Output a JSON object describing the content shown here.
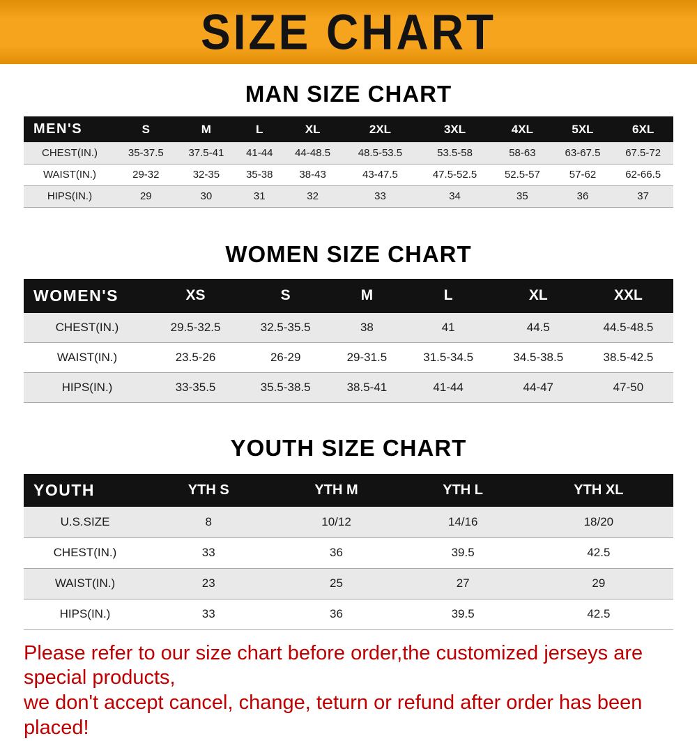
{
  "banner": {
    "title": "SIZE CHART"
  },
  "chart_data": [
    {
      "type": "table",
      "title": "MAN SIZE CHART",
      "columns": [
        "MEN'S",
        "S",
        "M",
        "L",
        "XL",
        "2XL",
        "3XL",
        "4XL",
        "5XL",
        "6XL"
      ],
      "rows": [
        [
          "CHEST(IN.)",
          "35-37.5",
          "37.5-41",
          "41-44",
          "44-48.5",
          "48.5-53.5",
          "53.5-58",
          "58-63",
          "63-67.5",
          "67.5-72"
        ],
        [
          "WAIST(IN.)",
          "29-32",
          "32-35",
          "35-38",
          "38-43",
          "43-47.5",
          "47.5-52.5",
          "52.5-57",
          "57-62",
          "62-66.5"
        ],
        [
          "HIPS(IN.)",
          "29",
          "30",
          "31",
          "32",
          "33",
          "34",
          "35",
          "36",
          "37"
        ]
      ]
    },
    {
      "type": "table",
      "title": "WOMEN SIZE CHART",
      "columns": [
        "WOMEN'S",
        "XS",
        "S",
        "M",
        "L",
        "XL",
        "XXL"
      ],
      "rows": [
        [
          "CHEST(IN.)",
          "29.5-32.5",
          "32.5-35.5",
          "38",
          "41",
          "44.5",
          "44.5-48.5"
        ],
        [
          "WAIST(IN.)",
          "23.5-26",
          "26-29",
          "29-31.5",
          "31.5-34.5",
          "34.5-38.5",
          "38.5-42.5"
        ],
        [
          "HIPS(IN.)",
          "33-35.5",
          "35.5-38.5",
          "38.5-41",
          "41-44",
          "44-47",
          "47-50"
        ]
      ]
    },
    {
      "type": "table",
      "title": "YOUTH SIZE CHART",
      "columns": [
        "YOUTH",
        "YTH S",
        "YTH M",
        "YTH L",
        "YTH XL"
      ],
      "rows": [
        [
          "U.S.SIZE",
          "8",
          "10/12",
          "14/16",
          "18/20"
        ],
        [
          "CHEST(IN.)",
          "33",
          "36",
          "39.5",
          "42.5"
        ],
        [
          "WAIST(IN.)",
          "23",
          "25",
          "27",
          "29"
        ],
        [
          "HIPS(IN.)",
          "33",
          "36",
          "39.5",
          "42.5"
        ]
      ]
    }
  ],
  "footer": {
    "line1": "Please refer to our size chart before order,the customized jerseys are special products,",
    "line2": "we don't accept cancel, change, teturn or refund after order has been placed!"
  },
  "theme": {
    "banner_orange": "#f6a41e",
    "banner_orange_dark": "#e08e05",
    "header_black": "#121212",
    "stripe_gray": "#e9e9e9",
    "footer_red": "#c00000"
  }
}
